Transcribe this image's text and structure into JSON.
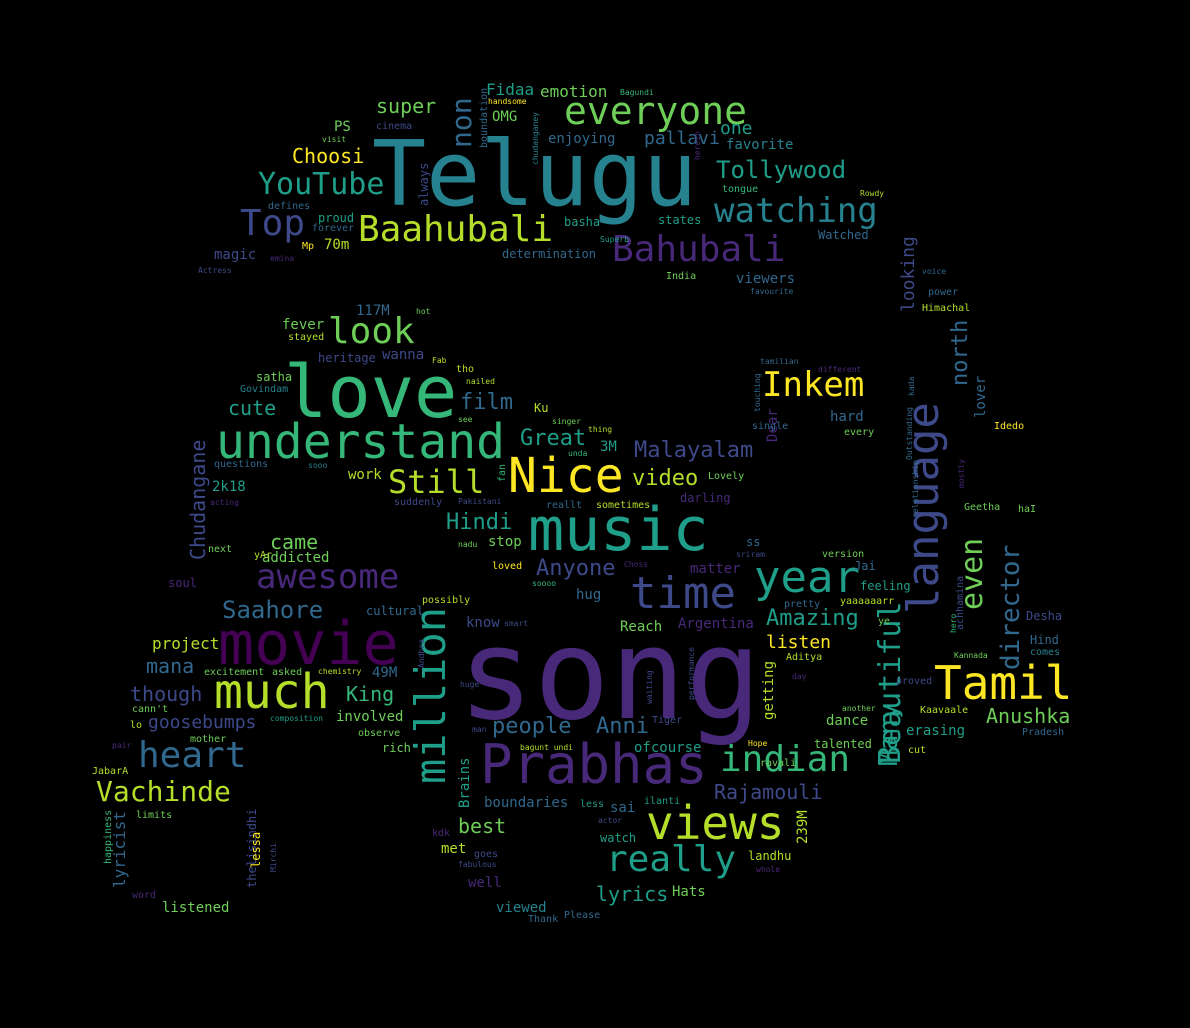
{
  "background": "#000000",
  "palette": {
    "yellow": "#fde725",
    "lime": "#b5de2b",
    "green": "#6ece58",
    "teal": "#35b779",
    "cyan": "#1f9e89",
    "blue": "#26828e",
    "steel": "#31688e",
    "indigo": "#3e4989",
    "violet": "#482878",
    "purple": "#440154"
  },
  "words": [
    {
      "text": "song",
      "c": "violet"
    },
    {
      "text": "Telugu",
      "c": "blue"
    },
    {
      "text": "love",
      "c": "teal"
    },
    {
      "text": "music",
      "c": "cyan"
    },
    {
      "text": "movie",
      "c": "purple"
    },
    {
      "text": "Prabhas",
      "c": "violet"
    },
    {
      "text": "understand",
      "c": "teal"
    },
    {
      "text": "much",
      "c": "lime"
    },
    {
      "text": "language",
      "c": "indigo"
    },
    {
      "text": "views",
      "c": "lime"
    },
    {
      "text": "time",
      "c": "indigo"
    },
    {
      "text": "year",
      "c": "cyan"
    },
    {
      "text": "Nice",
      "c": "yellow"
    },
    {
      "text": "Tamil",
      "c": "yellow"
    },
    {
      "text": "million",
      "c": "cyan"
    },
    {
      "text": "everyone",
      "c": "green"
    },
    {
      "text": "Baahubali",
      "c": "lime"
    },
    {
      "text": "Bahubali",
      "c": "violet"
    },
    {
      "text": "watching",
      "c": "blue"
    },
    {
      "text": "indian",
      "c": "teal"
    },
    {
      "text": "really",
      "c": "cyan"
    },
    {
      "text": "heart",
      "c": "steel"
    },
    {
      "text": "awesome",
      "c": "violet"
    },
    {
      "text": "look",
      "c": "green"
    },
    {
      "text": "Inkem",
      "c": "yellow"
    },
    {
      "text": "Top",
      "c": "indigo"
    },
    {
      "text": "YouTube",
      "c": "cyan"
    },
    {
      "text": "Still",
      "c": "lime"
    },
    {
      "text": "Vachinde",
      "c": "lime"
    },
    {
      "text": "Beautiful",
      "c": "cyan"
    },
    {
      "text": "even",
      "c": "green"
    },
    {
      "text": "Tollywood",
      "c": "cyan"
    },
    {
      "text": "director",
      "c": "steel"
    },
    {
      "text": "Many",
      "c": "cyan"
    },
    {
      "text": "Saahore",
      "c": "steel"
    },
    {
      "text": "Amazing",
      "c": "cyan"
    },
    {
      "text": "people",
      "c": "steel"
    },
    {
      "text": "video",
      "c": "lime"
    },
    {
      "text": "Hindi",
      "c": "cyan"
    },
    {
      "text": "Malayalam",
      "c": "indigo"
    },
    {
      "text": "Rajamouli",
      "c": "indigo"
    },
    {
      "text": "Anni",
      "c": "steel"
    },
    {
      "text": "north",
      "c": "steel"
    },
    {
      "text": "Anushka",
      "c": "green"
    },
    {
      "text": "Great",
      "c": "cyan"
    },
    {
      "text": "film",
      "c": "steel"
    },
    {
      "text": "non",
      "c": "steel"
    },
    {
      "text": "super",
      "c": "green"
    },
    {
      "text": "Choosi",
      "c": "yellow"
    },
    {
      "text": "Anyone",
      "c": "indigo"
    },
    {
      "text": "lyrics",
      "c": "cyan"
    },
    {
      "text": "King",
      "c": "teal"
    },
    {
      "text": "best",
      "c": "green"
    },
    {
      "text": "Chudangane",
      "c": "indigo"
    },
    {
      "text": "goosebumps",
      "c": "indigo"
    },
    {
      "text": "mana",
      "c": "steel"
    },
    {
      "text": "though",
      "c": "indigo"
    },
    {
      "text": "came",
      "c": "green"
    },
    {
      "text": "cute",
      "c": "cyan"
    },
    {
      "text": "looking",
      "c": "indigo"
    },
    {
      "text": "listen",
      "c": "yellow"
    },
    {
      "text": "one",
      "c": "cyan"
    },
    {
      "text": "pallavi",
      "c": "steel"
    },
    {
      "text": "emotion",
      "c": "green"
    },
    {
      "text": "Fidaa",
      "c": "cyan"
    },
    {
      "text": "enjoying",
      "c": "steel"
    },
    {
      "text": "favorite",
      "c": "blue"
    },
    {
      "text": "lyricist",
      "c": "steel"
    },
    {
      "text": "project",
      "c": "lime"
    },
    {
      "text": "addicted",
      "c": "green"
    },
    {
      "text": "2k18",
      "c": "cyan"
    },
    {
      "text": "work",
      "c": "lime"
    },
    {
      "text": "fever",
      "c": "green"
    },
    {
      "text": "magic",
      "c": "indigo"
    },
    {
      "text": "proud",
      "c": "cyan"
    },
    {
      "text": "70m",
      "c": "lime"
    },
    {
      "text": "PS",
      "c": "green"
    },
    {
      "text": "OMG",
      "c": "green"
    },
    {
      "text": "basha",
      "c": "cyan"
    },
    {
      "text": "states",
      "c": "cyan"
    },
    {
      "text": "determination",
      "c": "steel"
    },
    {
      "text": "viewers",
      "c": "steel"
    },
    {
      "text": "Watched",
      "c": "steel"
    },
    {
      "text": "117M",
      "c": "steel"
    },
    {
      "text": "heritage",
      "c": "indigo"
    },
    {
      "text": "wanna",
      "c": "indigo"
    },
    {
      "text": "49M",
      "c": "steel"
    },
    {
      "text": "involved",
      "c": "green"
    },
    {
      "text": "dance",
      "c": "green"
    },
    {
      "text": "hard",
      "c": "steel"
    },
    {
      "text": "feeling",
      "c": "cyan"
    },
    {
      "text": "Reach",
      "c": "green"
    },
    {
      "text": "hug",
      "c": "steel"
    },
    {
      "text": "know",
      "c": "indigo"
    },
    {
      "text": "stop",
      "c": "green"
    },
    {
      "text": "3M",
      "c": "cyan"
    },
    {
      "text": "Argentina",
      "c": "violet"
    },
    {
      "text": "matter",
      "c": "violet"
    },
    {
      "text": "ofcourse",
      "c": "cyan"
    },
    {
      "text": "getting",
      "c": "lime"
    },
    {
      "text": "erasing",
      "c": "cyan"
    },
    {
      "text": "talented",
      "c": "green"
    },
    {
      "text": "boundaries",
      "c": "steel"
    },
    {
      "text": "sai",
      "c": "steel"
    },
    {
      "text": "Brains",
      "c": "cyan"
    },
    {
      "text": "met",
      "c": "lime"
    },
    {
      "text": "well",
      "c": "violet"
    },
    {
      "text": "Hats",
      "c": "green"
    },
    {
      "text": "viewed",
      "c": "blue"
    },
    {
      "text": "listened",
      "c": "green"
    },
    {
      "text": "239M",
      "c": "lime"
    },
    {
      "text": "landhu",
      "c": "lime"
    },
    {
      "text": "Dear",
      "c": "violet"
    },
    {
      "text": "lover",
      "c": "steel"
    },
    {
      "text": "Desha",
      "c": "indigo"
    },
    {
      "text": "Hind",
      "c": "steel"
    },
    {
      "text": "comes",
      "c": "blue"
    },
    {
      "text": "cultural",
      "c": "steel"
    },
    {
      "text": "Jai",
      "c": "steel"
    },
    {
      "text": "rich",
      "c": "green"
    },
    {
      "text": "darling",
      "c": "violet"
    },
    {
      "text": "possibly",
      "c": "lime"
    },
    {
      "text": "version",
      "c": "green"
    },
    {
      "text": "ss",
      "c": "steel"
    },
    {
      "text": "Ku",
      "c": "lime"
    },
    {
      "text": "satha",
      "c": "green"
    },
    {
      "text": "stayed",
      "c": "lime"
    },
    {
      "text": "Govindam",
      "c": "blue"
    },
    {
      "text": "questions",
      "c": "steel"
    },
    {
      "text": "next",
      "c": "green"
    },
    {
      "text": "acting",
      "c": "violet"
    },
    {
      "text": "soul",
      "c": "violet"
    },
    {
      "text": "yAr",
      "c": "lime"
    },
    {
      "text": "cinema",
      "c": "indigo"
    },
    {
      "text": "visit",
      "c": "green"
    },
    {
      "text": "defines",
      "c": "steel"
    },
    {
      "text": "forever",
      "c": "steel"
    },
    {
      "text": "always",
      "c": "indigo"
    },
    {
      "text": "Mp",
      "c": "yellow"
    },
    {
      "text": "emina",
      "c": "violet"
    },
    {
      "text": "Actress",
      "c": "indigo"
    },
    {
      "text": "hot",
      "c": "green"
    },
    {
      "text": "Fab",
      "c": "lime"
    },
    {
      "text": "tho",
      "c": "lime"
    },
    {
      "text": "nailed",
      "c": "lime"
    },
    {
      "text": "see",
      "c": "green"
    },
    {
      "text": "singer",
      "c": "green"
    },
    {
      "text": "thing",
      "c": "lime"
    },
    {
      "text": "unda",
      "c": "teal"
    },
    {
      "text": "sooo",
      "c": "blue"
    },
    {
      "text": "fan",
      "c": "teal"
    },
    {
      "text": "Pakistani",
      "c": "indigo"
    },
    {
      "text": "suddenly",
      "c": "indigo"
    },
    {
      "text": "reallt",
      "c": "steel"
    },
    {
      "text": "sometimes",
      "c": "lime"
    },
    {
      "text": "nadu",
      "c": "green"
    },
    {
      "text": "loved",
      "c": "yellow"
    },
    {
      "text": "soooo",
      "c": "teal"
    },
    {
      "text": "Choss",
      "c": "violet"
    },
    {
      "text": "sriram",
      "c": "indigo"
    },
    {
      "text": "Lovely",
      "c": "green"
    },
    {
      "text": "single",
      "c": "steel"
    },
    {
      "text": "touching",
      "c": "steel"
    },
    {
      "text": "tamilian",
      "c": "steel"
    },
    {
      "text": "different",
      "c": "violet"
    },
    {
      "text": "kada",
      "c": "steel"
    },
    {
      "text": "every",
      "c": "green"
    },
    {
      "text": "Outstanding",
      "c": "steel"
    },
    {
      "text": "relationship",
      "c": "steel"
    },
    {
      "text": "mostly",
      "c": "violet"
    },
    {
      "text": "Idedo",
      "c": "yellow"
    },
    {
      "text": "Geetha",
      "c": "green"
    },
    {
      "text": "haI",
      "c": "green"
    },
    {
      "text": "achhamina",
      "c": "indigo"
    },
    {
      "text": "hero",
      "c": "teal"
    },
    {
      "text": "Kannada",
      "c": "green"
    },
    {
      "text": "pretty",
      "c": "steel"
    },
    {
      "text": "yaaaaaarr",
      "c": "lime"
    },
    {
      "text": "ye",
      "c": "green"
    },
    {
      "text": "proved",
      "c": "indigo"
    },
    {
      "text": "another",
      "c": "green"
    },
    {
      "text": "Kaavaale",
      "c": "lime"
    },
    {
      "text": "Pradesh",
      "c": "steel"
    },
    {
      "text": "cut",
      "c": "lime"
    },
    {
      "text": "Aditya",
      "c": "lime"
    },
    {
      "text": "day",
      "c": "violet"
    },
    {
      "text": "performance",
      "c": "indigo"
    },
    {
      "text": "waiting",
      "c": "indigo"
    },
    {
      "text": "Tiger",
      "c": "indigo"
    },
    {
      "text": "Hope",
      "c": "yellow"
    },
    {
      "text": "ravali",
      "c": "green"
    },
    {
      "text": "whole",
      "c": "violet"
    },
    {
      "text": "ilanti",
      "c": "cyan"
    },
    {
      "text": "less",
      "c": "cyan"
    },
    {
      "text": "actor",
      "c": "indigo"
    },
    {
      "text": "watch",
      "c": "cyan"
    },
    {
      "text": "goes",
      "c": "indigo"
    },
    {
      "text": "fabulous",
      "c": "indigo"
    },
    {
      "text": "Thank",
      "c": "steel"
    },
    {
      "text": "Please",
      "c": "steel"
    },
    {
      "text": "bagunt undi",
      "c": "lime"
    },
    {
      "text": "observe",
      "c": "green"
    },
    {
      "text": "chemistry",
      "c": "lime"
    },
    {
      "text": "composition",
      "c": "cyan"
    },
    {
      "text": "excitement",
      "c": "green"
    },
    {
      "text": "asked",
      "c": "green"
    },
    {
      "text": "Andhra",
      "c": "indigo"
    },
    {
      "text": "huge",
      "c": "indigo"
    },
    {
      "text": "man",
      "c": "indigo"
    },
    {
      "text": "smart",
      "c": "indigo"
    },
    {
      "text": "kdk",
      "c": "violet"
    },
    {
      "text": "thelisindhi",
      "c": "indigo"
    },
    {
      "text": "lessa",
      "c": "yellow"
    },
    {
      "text": "Mirchi",
      "c": "indigo"
    },
    {
      "text": "word",
      "c": "violet"
    },
    {
      "text": "happiness",
      "c": "teal"
    },
    {
      "text": "limits",
      "c": "green"
    },
    {
      "text": "JabarA",
      "c": "lime"
    },
    {
      "text": "pair",
      "c": "violet"
    },
    {
      "text": "lo",
      "c": "lime"
    },
    {
      "text": "cann't",
      "c": "green"
    },
    {
      "text": "mother",
      "c": "green"
    },
    {
      "text": "handsome",
      "c": "yellow"
    },
    {
      "text": "boundation",
      "c": "steel"
    },
    {
      "text": "chudanganey",
      "c": "blue"
    },
    {
      "text": "Bagundi",
      "c": "teal"
    },
    {
      "text": "herein",
      "c": "violet"
    },
    {
      "text": "tongue",
      "c": "teal"
    },
    {
      "text": "Rowdy",
      "c": "lime"
    },
    {
      "text": "Superb",
      "c": "cyan"
    },
    {
      "text": "India",
      "c": "green"
    },
    {
      "text": "favourite",
      "c": "steel"
    },
    {
      "text": "voice",
      "c": "steel"
    },
    {
      "text": "power",
      "c": "steel"
    },
    {
      "text": "Himachal",
      "c": "lime"
    }
  ]
}
